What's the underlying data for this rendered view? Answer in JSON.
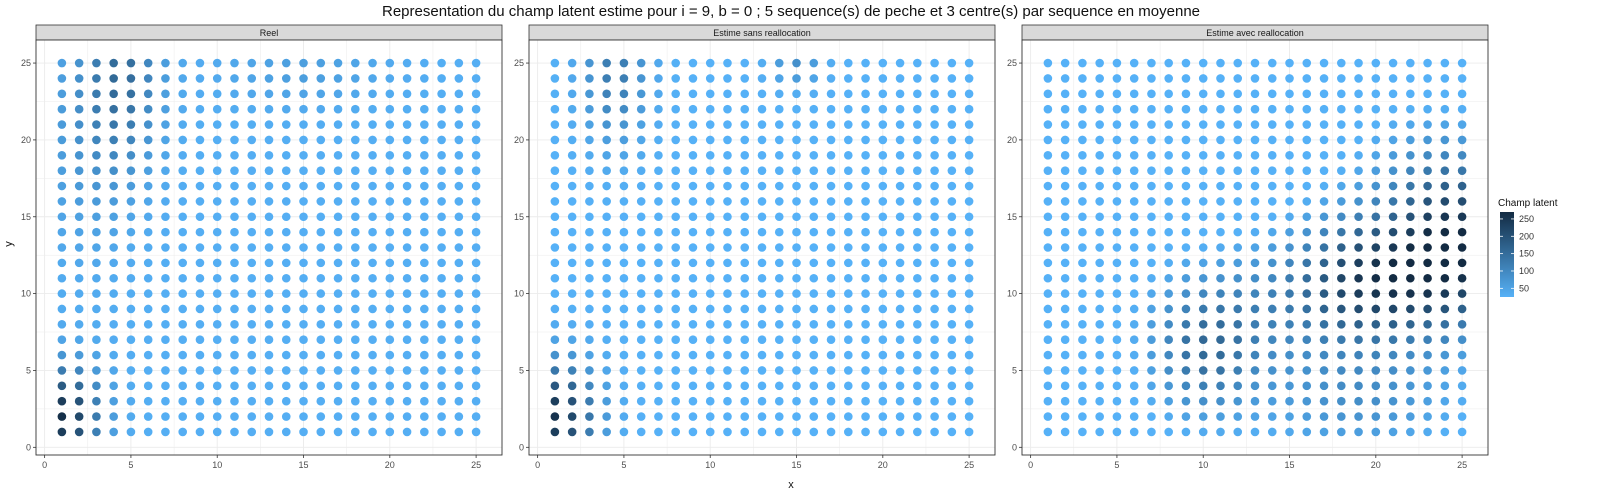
{
  "title": "Representation du champ latent estime pour i = 9, b = 0 ; 5 sequence(s) de peche et 3 centre(s) par sequence en moyenne",
  "chart_data": {
    "type": "scatter",
    "xlabel": "x",
    "ylabel": "y",
    "xlim": [
      -0.5,
      26.5
    ],
    "ylim": [
      -0.5,
      26.5
    ],
    "x_ticks": [
      0,
      5,
      10,
      15,
      20,
      25
    ],
    "y_ticks": [
      0,
      5,
      10,
      15,
      20,
      25
    ],
    "grid": true,
    "grid_x": [
      1,
      25
    ],
    "grid_y": [
      1,
      25
    ],
    "legend": {
      "title": "Champ latent",
      "position": "right",
      "ticks": [
        50,
        100,
        150,
        200,
        250
      ],
      "range": [
        25,
        270
      ],
      "color_low": "#56B1F7",
      "color_high": "#132B43"
    },
    "panels": [
      {
        "name": "Reel",
        "field": {
          "base": 30,
          "hotspots": [
            {
              "x": 1,
              "y": 2,
              "amp": 230,
              "sx": 1.5,
              "sy": 2.2
            },
            {
              "x": 4.5,
              "y": 24.5,
              "amp": 110,
              "sx": 1.5,
              "sy": 4
            },
            {
              "x": 2.5,
              "y": 20,
              "amp": 40,
              "sx": 2,
              "sy": 5
            },
            {
              "x": 15,
              "y": 24.5,
              "amp": 30,
              "sx": 3,
              "sy": 1.5
            }
          ]
        }
      },
      {
        "name": "Estime sans reallocation",
        "field": {
          "base": 25,
          "hotspots": [
            {
              "x": 1,
              "y": 2,
              "amp": 230,
              "sx": 1.6,
              "sy": 2.4
            },
            {
              "x": 4.5,
              "y": 24.5,
              "amp": 100,
              "sx": 1.3,
              "sy": 3.2
            },
            {
              "x": 15,
              "y": 25,
              "amp": 60,
              "sx": 1,
              "sy": 1
            }
          ]
        }
      },
      {
        "name": "Estime avec reallocation",
        "field": {
          "base": 0,
          "hotspots": [
            {
              "x": 20,
              "y": 11,
              "amp": 230,
              "sx": 3.2,
              "sy": 3
            },
            {
              "x": 25,
              "y": 13,
              "amp": 220,
              "sx": 2.4,
              "sy": 3.5
            },
            {
              "x": 10,
              "y": 6,
              "amp": 120,
              "sx": 2.2,
              "sy": 3
            },
            {
              "x": 13,
              "y": 9,
              "amp": 70,
              "sx": 4,
              "sy": 3
            },
            {
              "x": 19,
              "y": 3,
              "amp": 80,
              "sx": 4,
              "sy": 2.5
            },
            {
              "x": 23,
              "y": 18,
              "amp": 60,
              "sx": 3,
              "sy": 3
            }
          ]
        }
      }
    ]
  }
}
